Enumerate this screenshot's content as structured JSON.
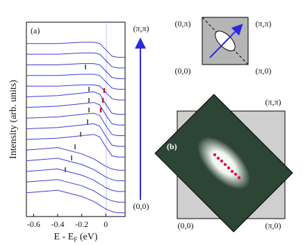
{
  "chart_data": {
    "type": "line",
    "panel_label": "(a)",
    "ylabel": "Intensity (arb. units)",
    "xlabel": {
      "main": "E - E",
      "sub": "F",
      "tail": " (eV)"
    },
    "x": [
      -0.66,
      -0.4,
      -0.2,
      -0.1,
      -0.05,
      0,
      0.05,
      0.1,
      0.16
    ],
    "xlim": [
      -0.66,
      0.16
    ],
    "xticks": [
      -0.6,
      -0.4,
      -0.2,
      0
    ],
    "ylim": [
      -0.5,
      15
    ],
    "color": "#3b3bd6",
    "series": [
      {
        "values": [
          13.3,
          13.3,
          13.4,
          13.4,
          13.3,
          12.8,
          12.3,
          12.2,
          12.2
        ]
      },
      {
        "values": [
          12.45,
          12.45,
          12.55,
          12.55,
          12.45,
          11.95,
          11.45,
          11.35,
          11.35
        ]
      },
      {
        "values": [
          11.6,
          11.6,
          11.7,
          11.7,
          11.6,
          11.1,
          10.6,
          10.5,
          10.5
        ]
      },
      {
        "values": [
          10.75,
          10.75,
          10.85,
          10.85,
          10.75,
          10.25,
          9.75,
          9.65,
          9.65
        ]
      },
      {
        "values": [
          9.9,
          9.9,
          10,
          10,
          9.9,
          9.4,
          8.9,
          8.8,
          8.8
        ]
      },
      {
        "values": [
          9.05,
          9.15,
          9.35,
          9.45,
          9.25,
          8.45,
          7.75,
          7.65,
          7.65
        ]
      },
      {
        "values": [
          8.2,
          8.3,
          8.5,
          8.6,
          8.4,
          7.6,
          6.9,
          6.8,
          6.8
        ]
      },
      {
        "values": [
          7.35,
          7.45,
          7.65,
          7.75,
          7.55,
          6.75,
          6.05,
          5.95,
          5.95
        ]
      },
      {
        "values": [
          6.5,
          6.6,
          6.8,
          6.9,
          6.7,
          5.9,
          5.2,
          5.1,
          5.1
        ]
      },
      {
        "values": [
          5.65,
          5.75,
          5.95,
          6.05,
          5.85,
          5.05,
          4.35,
          4.25,
          4.25
        ]
      },
      {
        "values": [
          4.8,
          5,
          4.5,
          4.1,
          3.8,
          3.5,
          3.3,
          3.2,
          3.2
        ]
      },
      {
        "values": [
          3.95,
          4.15,
          3.65,
          3.25,
          2.95,
          2.65,
          2.45,
          2.35,
          2.35
        ]
      },
      {
        "values": [
          3.1,
          3.3,
          2.8,
          2.4,
          2.1,
          1.8,
          1.6,
          1.5,
          1.5
        ]
      },
      {
        "values": [
          2.25,
          2.45,
          1.95,
          1.55,
          1.25,
          0.95,
          0.75,
          0.65,
          0.65
        ]
      },
      {
        "values": [
          1.4,
          1.6,
          1.1,
          0.7,
          0.4,
          0.1,
          -0.1,
          -0.2,
          -0.2
        ]
      }
    ],
    "cut_labels": {
      "top": "(π,π)",
      "bottom": "(0,0)"
    },
    "inset": {
      "top_left": "(0,π)",
      "top_right": "(π,π)",
      "bottom_left": "(0,0)",
      "bottom_right": "(π,0)"
    },
    "panel_b": {
      "label": "(b)",
      "top_right": "(π,π)",
      "bottom_left": "(0,0)",
      "bottom_right": "(π,0)"
    }
  }
}
